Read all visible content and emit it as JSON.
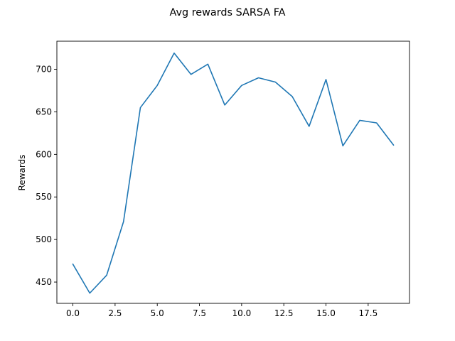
{
  "chart_data": {
    "type": "line",
    "title": "Avg rewards SARSA FA",
    "xlabel": "",
    "ylabel": "Rewards",
    "xlim": [
      -0.95,
      19.95
    ],
    "ylim": [
      425,
      733
    ],
    "xticks": [
      {
        "value": 0.0,
        "label": "0.0"
      },
      {
        "value": 2.5,
        "label": "2.5"
      },
      {
        "value": 5.0,
        "label": "5.0"
      },
      {
        "value": 7.5,
        "label": "7.5"
      },
      {
        "value": 10.0,
        "label": "10.0"
      },
      {
        "value": 12.5,
        "label": "12.5"
      },
      {
        "value": 15.0,
        "label": "15.0"
      },
      {
        "value": 17.5,
        "label": "17.5"
      }
    ],
    "yticks": [
      {
        "value": 450,
        "label": "450"
      },
      {
        "value": 500,
        "label": "500"
      },
      {
        "value": 550,
        "label": "550"
      },
      {
        "value": 600,
        "label": "600"
      },
      {
        "value": 650,
        "label": "650"
      },
      {
        "value": 700,
        "label": "700"
      }
    ],
    "grid": false,
    "legend": "none",
    "colors": {
      "line": "#1f77b4",
      "axes": "#000000",
      "background": "#ffffff"
    },
    "series": [
      {
        "x": [
          0,
          1,
          2,
          3,
          4,
          5,
          6,
          7,
          8,
          9,
          10,
          11,
          12,
          13,
          14,
          15,
          16,
          17,
          18,
          19
        ],
        "values": [
          471,
          437,
          458,
          521,
          655,
          681,
          719,
          694,
          706,
          658,
          681,
          690,
          685,
          668,
          633,
          688,
          610,
          640,
          637,
          611
        ]
      }
    ]
  }
}
